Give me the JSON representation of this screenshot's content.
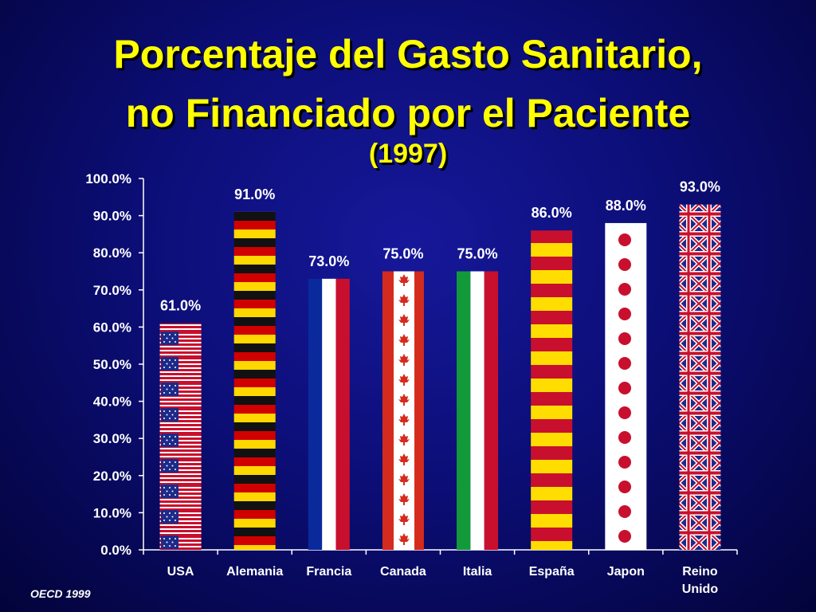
{
  "chart_data": {
    "type": "bar",
    "title": "Porcentaje del Gasto Sanitario, no Financiado por el Paciente",
    "title_lines": [
      "Porcentaje del Gasto Sanitario,",
      "no Financiado por el Paciente",
      "(1997)"
    ],
    "categories": [
      "USA",
      "Alemania",
      "Francia",
      "Canada",
      "Italia",
      "España",
      "Japon",
      "Reino Unido"
    ],
    "category_lines": [
      [
        "USA"
      ],
      [
        "Alemania"
      ],
      [
        "Francia"
      ],
      [
        "Canada"
      ],
      [
        "Italia"
      ],
      [
        "España"
      ],
      [
        "Japon"
      ],
      [
        "Reino",
        "Unido"
      ]
    ],
    "values": [
      61.0,
      91.0,
      73.0,
      75.0,
      75.0,
      86.0,
      88.0,
      93.0
    ],
    "value_labels": [
      "61.0%",
      "91.0%",
      "73.0%",
      "75.0%",
      "75.0%",
      "86.0%",
      "88.0%",
      "93.0%"
    ],
    "bar_patterns": [
      "usa-flag",
      "germany-flag",
      "france-flag",
      "canada-flag",
      "italy-flag",
      "spain-flag",
      "japan-flag",
      "uk-flag"
    ],
    "ylim": [
      0,
      100
    ],
    "yticks": [
      0,
      10,
      20,
      30,
      40,
      50,
      60,
      70,
      80,
      90,
      100
    ],
    "ytick_labels": [
      "0.0%",
      "10.0%",
      "20.0%",
      "30.0%",
      "40.0%",
      "50.0%",
      "60.0%",
      "70.0%",
      "80.0%",
      "90.0%",
      "100.0%"
    ],
    "xlabel": "",
    "ylabel": "",
    "grid": false
  },
  "source": "OECD 1999",
  "colors": {
    "title": "#ffff00",
    "text": "#ffffff",
    "axis": "#ffffff",
    "background": "#0c0e78"
  }
}
